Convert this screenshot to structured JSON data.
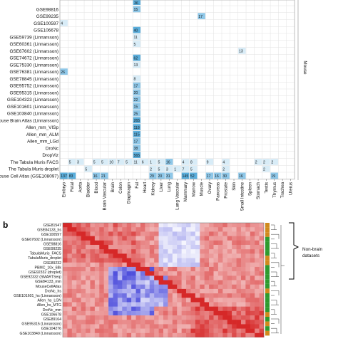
{
  "panel_b_label": "b",
  "side_label_mouse": "Mouse",
  "side_label_nonbrain": "Non-brain\ndatasets",
  "heatmap_cells": {
    "title": "",
    "rows": [
      {
        "name": "GSE98816",
        "cells": [
          {
            "col": 9,
            "v": "15"
          }
        ]
      },
      {
        "name": "GSE99235",
        "cells": [
          {
            "col": 17,
            "v": "17"
          }
        ]
      },
      {
        "name": "GSE100597",
        "cells": [
          {
            "col": 0,
            "v": "4"
          }
        ]
      },
      {
        "name": "GSE106678",
        "cells": [
          {
            "col": 9,
            "v": "40"
          }
        ]
      },
      {
        "name": "GSE59739 (Linnarsson)",
        "cells": [
          {
            "col": 9,
            "v": "11"
          }
        ]
      },
      {
        "name": "GSE60361 (Linnarsson)",
        "cells": [
          {
            "col": 9,
            "v": "5"
          }
        ]
      },
      {
        "name": "GSE67602 (Linnarsson)",
        "cells": [
          {
            "col": 22,
            "v": "13"
          }
        ]
      },
      {
        "name": "GSE74672 (Linnarsson)",
        "cells": [
          {
            "col": 9,
            "v": "62"
          }
        ]
      },
      {
        "name": "GSE75330 (Linnarsson)",
        "cells": [
          {
            "col": 9,
            "v": "13"
          }
        ]
      },
      {
        "name": "GSE76381 (Linnarsson)",
        "cells": [
          {
            "col": 0,
            "v": "26"
          }
        ]
      },
      {
        "name": "GSE78845 (Linnarsson)",
        "cells": [
          {
            "col": 9,
            "v": "8"
          }
        ]
      },
      {
        "name": "GSE95752 (Linnarsson)",
        "cells": [
          {
            "col": 9,
            "v": "17"
          }
        ]
      },
      {
        "name": "GSE95315 (Linnarsson)",
        "cells": [
          {
            "col": 9,
            "v": "20"
          }
        ]
      },
      {
        "name": "GSE104323 (Linnarsson)",
        "cells": [
          {
            "col": 9,
            "v": "22"
          }
        ]
      },
      {
        "name": "GSE101601 (Linnarsson)",
        "cells": [
          {
            "col": 9,
            "v": "15"
          }
        ]
      },
      {
        "name": "GSE103840 (Linnarsson)",
        "cells": [
          {
            "col": 9,
            "v": "25"
          }
        ]
      },
      {
        "name": "Mouse Brain Atlas (Linnarsson)",
        "cells": [
          {
            "col": 9,
            "v": "265"
          }
        ]
      },
      {
        "name": "Allen_mm_VISp",
        "cells": [
          {
            "col": 9,
            "v": "118"
          }
        ]
      },
      {
        "name": "Allen_mm_ALM",
        "cells": [
          {
            "col": 9,
            "v": "115"
          }
        ]
      },
      {
        "name": "Allen_mm_LGd",
        "cells": [
          {
            "col": 9,
            "v": "17"
          }
        ]
      },
      {
        "name": "DroNc",
        "cells": [
          {
            "col": 9,
            "v": "38"
          }
        ]
      },
      {
        "name": "DropViz",
        "cells": [
          {
            "col": 9,
            "v": "565"
          }
        ]
      },
      {
        "name": "The Tabula Muris FACS",
        "cells": [
          {
            "col": 1,
            "v": "5"
          },
          {
            "col": 2,
            "v": "3"
          },
          {
            "col": 4,
            "v": "5"
          },
          {
            "col": 5,
            "v": "5"
          },
          {
            "col": 6,
            "v": "10"
          },
          {
            "col": 7,
            "v": "7"
          },
          {
            "col": 8,
            "v": "5"
          },
          {
            "col": 9,
            "v": "11"
          },
          {
            "col": 10,
            "v": "6"
          },
          {
            "col": 11,
            "v": "1"
          },
          {
            "col": 12,
            "v": "5"
          },
          {
            "col": 13,
            "v": "16"
          },
          {
            "col": 15,
            "v": "4"
          },
          {
            "col": 16,
            "v": "8"
          },
          {
            "col": 18,
            "v": "9"
          },
          {
            "col": 20,
            "v": "4"
          },
          {
            "col": 24,
            "v": "2"
          },
          {
            "col": 25,
            "v": "2"
          },
          {
            "col": 26,
            "v": "2"
          }
        ]
      },
      {
        "name": "The Tabula Muris droplet",
        "cells": [
          {
            "col": 3,
            "v": "5"
          },
          {
            "col": 11,
            "v": "2"
          },
          {
            "col": 12,
            "v": "5"
          },
          {
            "col": 13,
            "v": "3"
          },
          {
            "col": 14,
            "v": "1"
          },
          {
            "col": 15,
            "v": "7"
          },
          {
            "col": 16,
            "v": "5"
          },
          {
            "col": 20,
            "v": "2"
          },
          {
            "col": 25,
            "v": "2"
          }
        ]
      },
      {
        "name": "The Mouse Cell Atlas (GSE108097)",
        "cells": [
          {
            "col": 0,
            "v": "137"
          },
          {
            "col": 1,
            "v": "83"
          },
          {
            "col": 4,
            "v": "16"
          },
          {
            "col": 5,
            "v": "21"
          },
          {
            "col": 11,
            "v": "29"
          },
          {
            "col": 12,
            "v": "20"
          },
          {
            "col": 13,
            "v": "31"
          },
          {
            "col": 15,
            "v": "145"
          },
          {
            "col": 16,
            "v": "52"
          },
          {
            "col": 18,
            "v": "17"
          },
          {
            "col": 19,
            "v": "16"
          },
          {
            "col": 20,
            "v": "30"
          },
          {
            "col": 22,
            "v": "16"
          },
          {
            "col": 26,
            "v": "19"
          }
        ]
      }
    ],
    "columns": [
      "Embryo",
      "Fetal",
      "Aorta",
      "Bladder",
      "Blood",
      "Brain Vascular",
      "Brain",
      "Colon",
      "Diaphragm",
      "Fat",
      "Heart",
      "Kidney",
      "Liver",
      "Lung",
      "Lung Vascular",
      "Mammary",
      "Marrow",
      "Muscle",
      "Ovary",
      "Pancreas",
      "Prostate",
      "Skin",
      "Small Intestine",
      "Spleen",
      "Stomach",
      "Testis",
      "Thymus",
      "Trachea",
      "Uterus"
    ],
    "top_partial": [
      {
        "col": 9,
        "v": "36"
      }
    ]
  },
  "correlation": {
    "row_labels": [
      "GSE81547",
      "GSE84133_hs",
      "GSE100597",
      "GSE67602 (Linnarsson)",
      "GSE98816",
      "GSE99235",
      "TabulaMuris_FACS",
      "TabulaMuris_droplet",
      "GSE89232",
      "PBMC_10x_68k",
      "GSE92332 (droplet)",
      "GSE92332 (SMARTSeq)",
      "GSE84133_mm",
      "MouseCellAtlas",
      "DroNc_hs",
      "GSE101601_hs (Linnarsson)",
      "Allen_hs_LGN",
      "Allen_hs_MTG",
      "DroNc_mm",
      "GSE106678",
      "GSE89164",
      "GSE95315 (Linnarsson)",
      "GSE104276",
      "GSE103840 (Linnarsson)"
    ],
    "group_colors": [
      "#d08a1d",
      "#d08a1d",
      "#d08a1d",
      "#2e9a2e",
      "#2e9a2e",
      "#2e9a2e",
      "#2e9a2e",
      "#d08a1d",
      "#d08a1d",
      "#2e9a2e",
      "#2e9a2e",
      "#2e9a2e",
      "#2e9a2e",
      "#2e9a2e",
      "#d08a1d",
      "#2e9a2e",
      "#2e9a2e",
      "#2e9a2e",
      "#2e9a2e",
      "#d08a1d",
      "#2e9a2e",
      "#d08a1d",
      "#2e9a2e",
      "#d08a1d"
    ]
  },
  "colors": {
    "cell_blue": "#5aaedc",
    "cell_light": "#d8ecf7",
    "strong_red": "#d62020",
    "blue": "#3a3ad8"
  }
}
